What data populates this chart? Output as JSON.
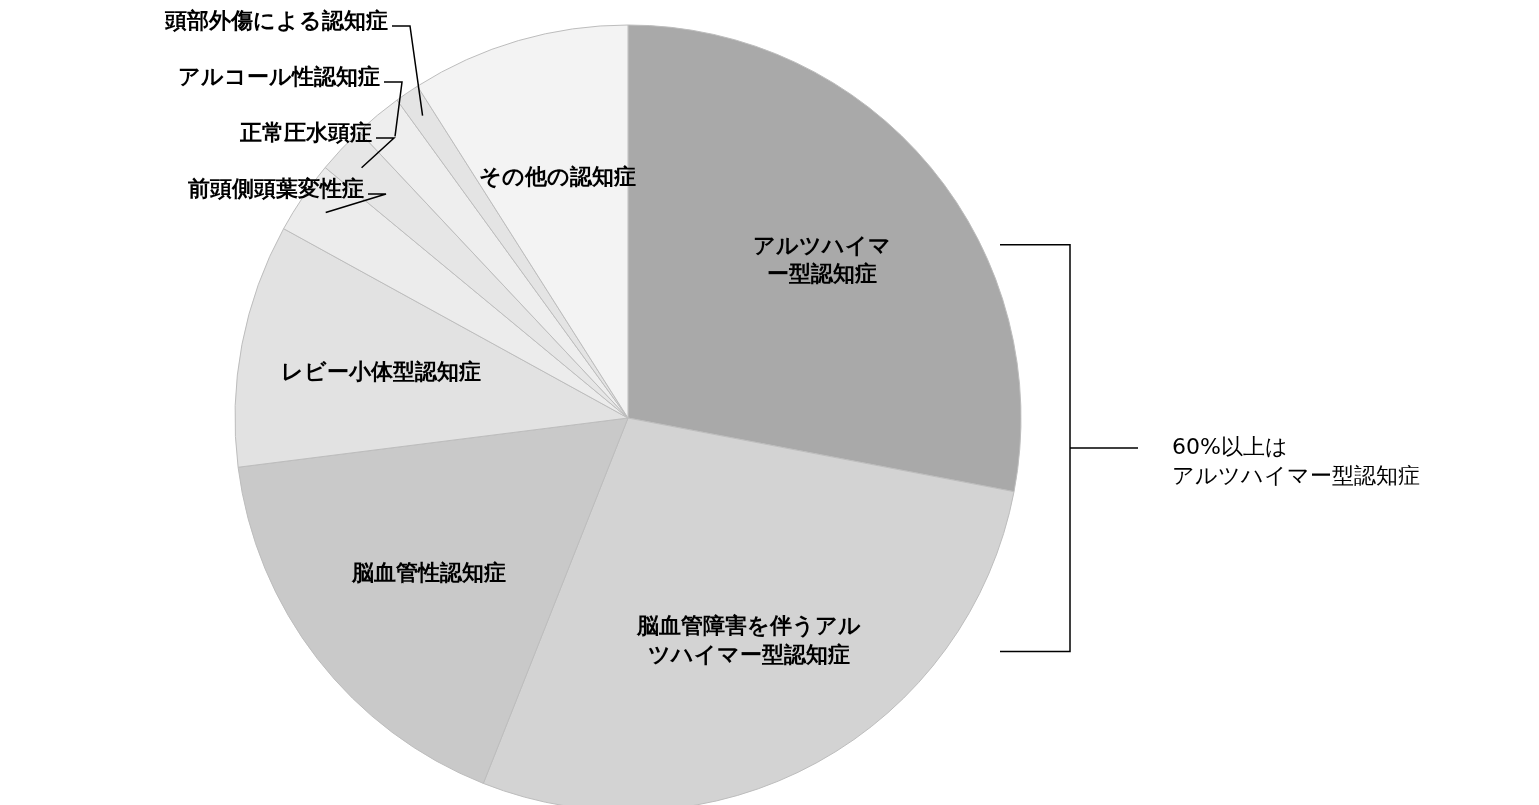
{
  "chart_data": {
    "type": "pie",
    "categories": [
      "アルツハイマー型認知症",
      "脳血管障害を伴うアルツハイマー型認知症",
      "脳血管性認知症",
      "レビー小体型認知症",
      "前頭側頭葉変性症",
      "正常圧水頭症",
      "アルコール性認知症",
      "頭部外傷による認知症",
      "その他の認知症"
    ],
    "values": [
      28,
      28,
      17,
      10,
      3,
      2,
      2,
      1,
      9
    ],
    "colors": [
      "#a9a9a9",
      "#d3d3d3",
      "#c9c9c9",
      "#e2e2e2",
      "#ececec",
      "#e6e6e6",
      "#eeeeee",
      "#e4e4e4",
      "#f3f3f3"
    ],
    "annotations": [
      "60%以上は",
      "アルツハイマー型認知症"
    ]
  }
}
